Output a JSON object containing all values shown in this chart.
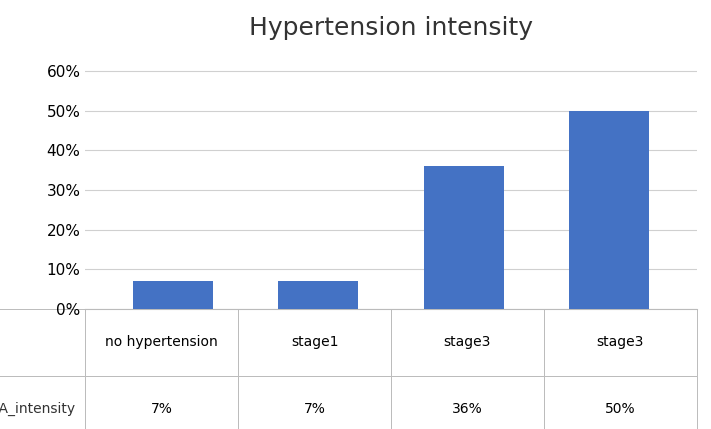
{
  "title": "Hypertension intensity",
  "categories": [
    "no hypertension",
    "stage1",
    "stage3",
    "stage3"
  ],
  "values": [
    0.07,
    0.07,
    0.36,
    0.5
  ],
  "bar_color": "#4472C4",
  "legend_label": "HTA_intensity",
  "legend_values": [
    "7%",
    "7%",
    "36%",
    "50%"
  ],
  "ylim": [
    0,
    0.65
  ],
  "yticks": [
    0.0,
    0.1,
    0.2,
    0.3,
    0.4,
    0.5,
    0.6
  ],
  "ytick_labels": [
    "0%",
    "10%",
    "20%",
    "30%",
    "40%",
    "50%",
    "60%"
  ],
  "title_fontsize": 18,
  "background_color": "#ffffff",
  "grid_color": "#d0d0d0"
}
